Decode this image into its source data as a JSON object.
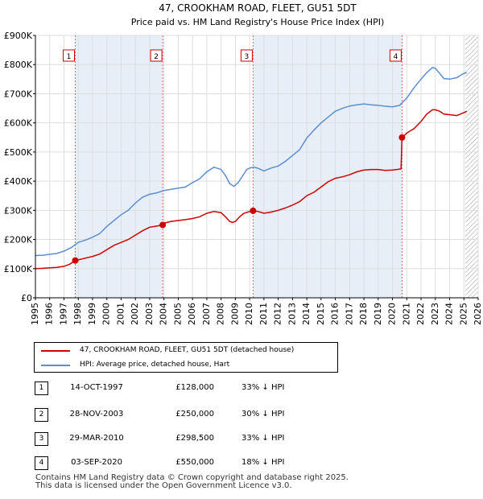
{
  "chart_data": {
    "type": "line",
    "title": "47, CROOKHAM ROAD, FLEET, GU51 5DT",
    "subtitle": "Price paid vs. HM Land Registry's House Price Index (HPI)",
    "xlabel": "",
    "ylabel": "",
    "xlim": [
      1995,
      2026
    ],
    "ylim": [
      0,
      900000
    ],
    "y_ticks": [
      0,
      100000,
      200000,
      300000,
      400000,
      500000,
      600000,
      700000,
      800000,
      900000
    ],
    "y_tick_labels": [
      "£0",
      "£100K",
      "£200K",
      "£300K",
      "£400K",
      "£500K",
      "£600K",
      "£700K",
      "£800K",
      "£900K"
    ],
    "x_ticks": [
      1995,
      1996,
      1997,
      1998,
      1999,
      2000,
      2001,
      2002,
      2003,
      2004,
      2005,
      2006,
      2007,
      2008,
      2009,
      2010,
      2011,
      2012,
      2013,
      2014,
      2015,
      2016,
      2017,
      2018,
      2019,
      2020,
      2021,
      2022,
      2023,
      2024,
      2025,
      2026
    ],
    "x_tick_labels": [
      "1995",
      "1996",
      "1997",
      "1998",
      "1999",
      "2000",
      "2001",
      "2002",
      "2003",
      "2004",
      "2005",
      "2006",
      "2007",
      "2008",
      "2009",
      "2010",
      "2011",
      "2012",
      "2013",
      "2014",
      "2015",
      "2016",
      "2017",
      "2018",
      "2019",
      "2020",
      "2021",
      "2022",
      "2023",
      "2024",
      "2025",
      "2026"
    ],
    "grid": true,
    "shaded_ranges": [
      [
        1997.79,
        2003.91
      ],
      [
        2010.24,
        2020.67
      ]
    ],
    "hatched_from": 2025.1,
    "series": [
      {
        "name": "47, CROOKHAM ROAD, FLEET, GU51 5DT (detached house)",
        "color": "#cc0000",
        "x": [
          1995,
          1995.5,
          1996,
          1996.5,
          1997,
          1997.4,
          1997.79,
          1998,
          1998.5,
          1999,
          1999.5,
          2000,
          2000.5,
          2001,
          2001.5,
          2002,
          2002.5,
          2003,
          2003.5,
          2003.91,
          2004,
          2004.5,
          2005,
          2005.5,
          2006,
          2006.5,
          2007,
          2007.5,
          2008,
          2008.3,
          2008.6,
          2008.8,
          2009,
          2009.3,
          2009.6,
          2010,
          2010.24,
          2010.6,
          2011,
          2011.5,
          2012,
          2012.5,
          2013,
          2013.5,
          2014,
          2014.5,
          2015,
          2015.5,
          2016,
          2016.5,
          2017,
          2017.5,
          2018,
          2018.5,
          2019,
          2019.5,
          2020,
          2020.3,
          2020.6,
          2020.67,
          2020.8,
          2021,
          2021.5,
          2022,
          2022.4,
          2022.8,
          2023,
          2023.3,
          2023.6,
          2024,
          2024.5,
          2025,
          2025.2
        ],
        "values": [
          100000,
          101000,
          103000,
          104000,
          108000,
          115000,
          128000,
          130000,
          136000,
          142000,
          150000,
          165000,
          180000,
          190000,
          200000,
          215000,
          230000,
          242000,
          246000,
          250000,
          256000,
          262000,
          265000,
          268000,
          272000,
          278000,
          290000,
          296000,
          292000,
          278000,
          262000,
          258000,
          262000,
          278000,
          290000,
          296000,
          298500,
          296000,
          290000,
          294000,
          300000,
          308000,
          318000,
          330000,
          350000,
          362000,
          380000,
          398000,
          410000,
          415000,
          422000,
          432000,
          438000,
          440000,
          440000,
          437000,
          438000,
          440000,
          442000,
          550000,
          555000,
          565000,
          580000,
          605000,
          630000,
          645000,
          645000,
          640000,
          630000,
          628000,
          625000,
          635000,
          640000
        ]
      },
      {
        "name": "HPI: Average price, detached house, Hart",
        "color": "#5b8fd0",
        "x": [
          1995,
          1995.5,
          1996,
          1996.5,
          1997,
          1997.5,
          1998,
          1998.5,
          1999,
          1999.5,
          2000,
          2000.5,
          2001,
          2001.5,
          2002,
          2002.5,
          2003,
          2003.5,
          2004,
          2004.5,
          2005,
          2005.5,
          2006,
          2006.5,
          2007,
          2007.5,
          2008,
          2008.3,
          2008.6,
          2008.9,
          2009.2,
          2009.5,
          2009.8,
          2010,
          2010.3,
          2010.6,
          2011,
          2011.5,
          2012,
          2012.5,
          2013,
          2013.5,
          2014,
          2014.5,
          2015,
          2015.5,
          2016,
          2016.5,
          2017,
          2017.5,
          2018,
          2018.5,
          2019,
          2019.5,
          2020,
          2020.5,
          2021,
          2021.5,
          2022,
          2022.4,
          2022.8,
          2023,
          2023.3,
          2023.6,
          2024,
          2024.5,
          2025,
          2025.2
        ],
        "values": [
          145000,
          146000,
          149000,
          152000,
          160000,
          172000,
          190000,
          198000,
          208000,
          220000,
          245000,
          265000,
          285000,
          300000,
          325000,
          345000,
          355000,
          360000,
          368000,
          372000,
          376000,
          380000,
          395000,
          408000,
          432000,
          448000,
          440000,
          420000,
          392000,
          382000,
          395000,
          418000,
          440000,
          445000,
          448000,
          444000,
          435000,
          445000,
          452000,
          468000,
          488000,
          508000,
          548000,
          575000,
          600000,
          620000,
          640000,
          650000,
          658000,
          662000,
          665000,
          662000,
          660000,
          657000,
          655000,
          660000,
          685000,
          720000,
          750000,
          772000,
          790000,
          787000,
          770000,
          752000,
          750000,
          755000,
          770000,
          772000
        ]
      }
    ],
    "sales": [
      {
        "label": "1",
        "x": 1997.79,
        "value": 128000
      },
      {
        "label": "2",
        "x": 2003.91,
        "value": 250000
      },
      {
        "label": "3",
        "x": 2010.24,
        "value": 298500
      },
      {
        "label": "4",
        "x": 2020.67,
        "value": 550000
      }
    ]
  },
  "legend": {
    "property": "47, CROOKHAM ROAD, FLEET, GU51 5DT (detached house)",
    "hpi": "HPI: Average price, detached house, Hart"
  },
  "transactions": [
    {
      "marker": "1",
      "date": "14-OCT-1997",
      "price": "£128,000",
      "hpi": "33% ↓ HPI"
    },
    {
      "marker": "2",
      "date": "28-NOV-2003",
      "price": "£250,000",
      "hpi": "30% ↓ HPI"
    },
    {
      "marker": "3",
      "date": "29-MAR-2010",
      "price": "£298,500",
      "hpi": "33% ↓ HPI"
    },
    {
      "marker": "4",
      "date": "03-SEP-2020",
      "price": "£550,000",
      "hpi": "18% ↓ HPI"
    }
  ],
  "footer": {
    "line1": "Contains HM Land Registry data © Crown copyright and database right 2025.",
    "line2": "This data is licensed under the Open Government Licence v3.0."
  },
  "colors": {
    "property": "#cc0000",
    "hpi": "#5b8fd0",
    "shade": "#e8eef8",
    "grid": "#dddddd"
  }
}
